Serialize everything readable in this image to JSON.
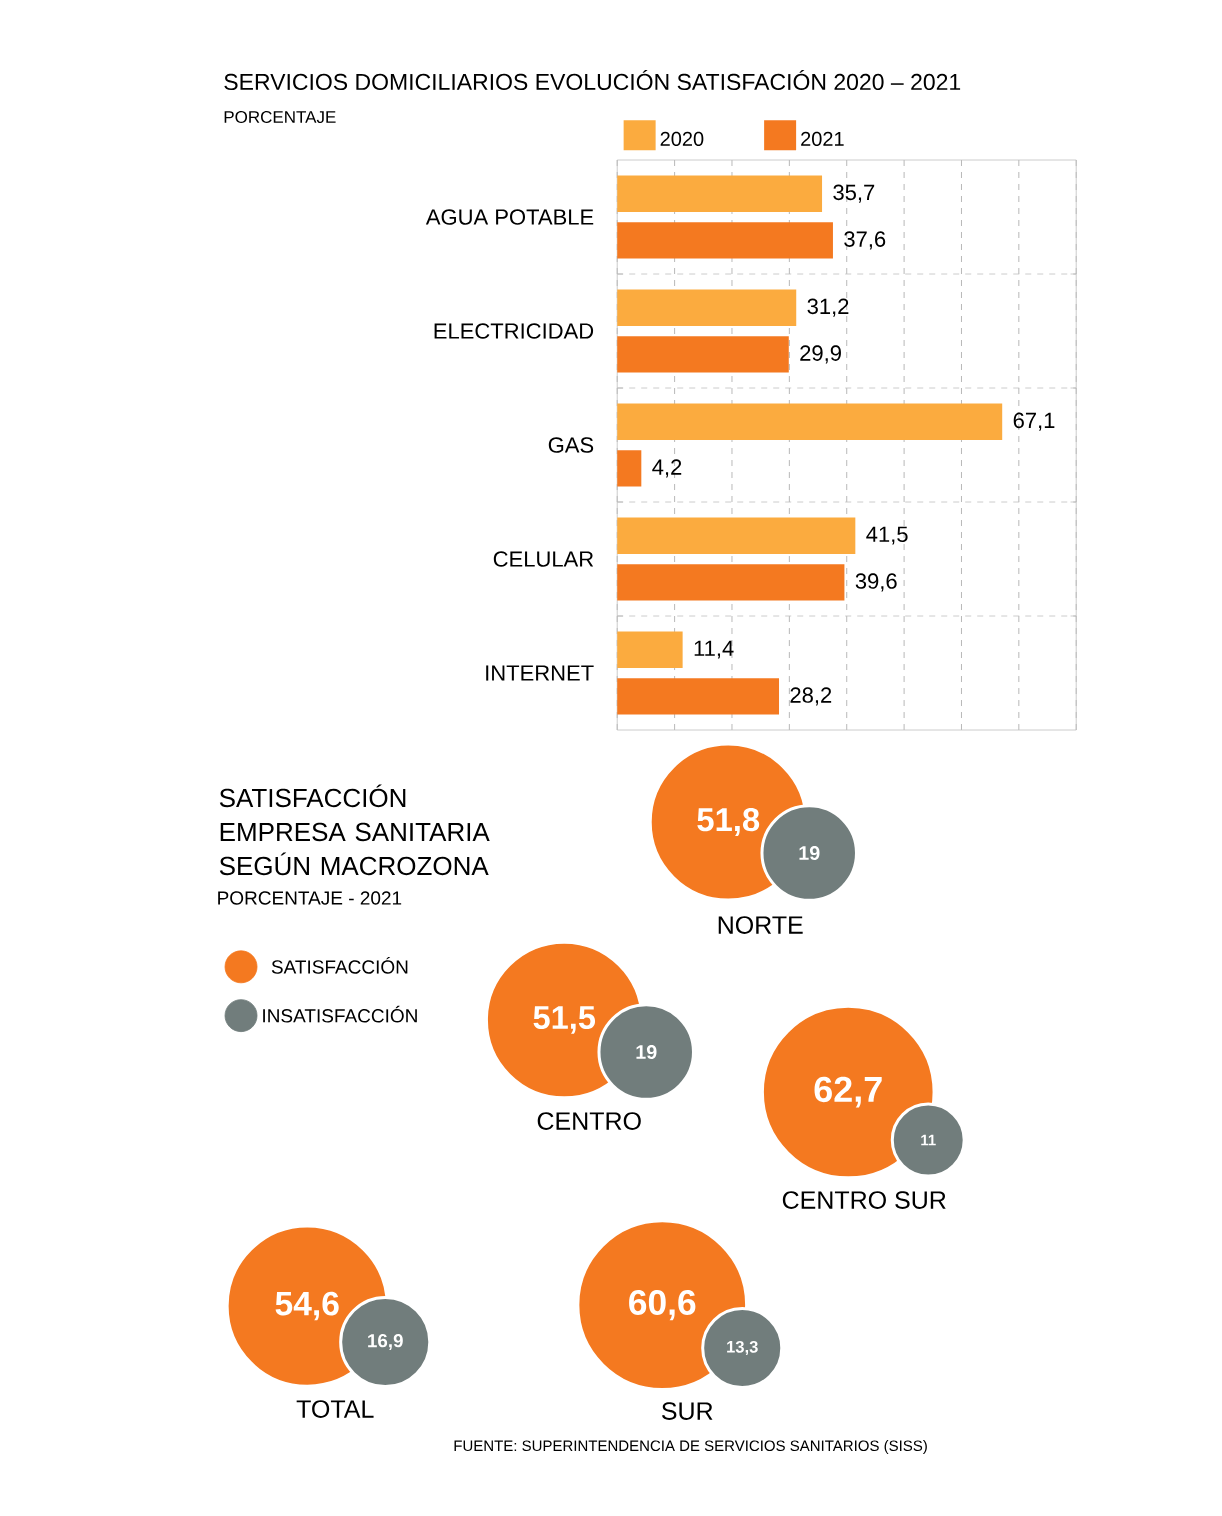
{
  "chart_data": [
    {
      "type": "bar",
      "orientation": "horizontal",
      "title": "SERVICIOS DOMICILIARIOS EVOLUCIÓN SATISFACIÓN 2020 – 2021",
      "subtitle": "PORCENTAJE",
      "categories": [
        "AGUA POTABLE",
        "ELECTRICIDAD",
        "GAS",
        "CELULAR",
        "INTERNET"
      ],
      "series": [
        {
          "name": "2020",
          "color": "#fbab3f",
          "values": [
            35.7,
            31.2,
            67.1,
            41.5,
            11.4
          ],
          "value_labels": [
            "35,7",
            "31,2",
            "67,1",
            "41,5",
            "11,4"
          ]
        },
        {
          "name": "2021",
          "color": "#f47920",
          "values": [
            37.6,
            29.9,
            4.2,
            39.6,
            28.2
          ],
          "value_labels": [
            "37,6",
            "29,9",
            "4,2",
            "39,6",
            "28,2"
          ]
        }
      ],
      "xlim": [
        0,
        80
      ],
      "xticks": [
        {
          "value": 0,
          "label": null
        },
        {
          "value": 10,
          "label": null
        },
        {
          "value": 20,
          "label": null
        },
        {
          "value": 30,
          "label": null
        },
        {
          "value": 40,
          "label": null
        },
        {
          "value": 50,
          "label": null
        },
        {
          "value": 60,
          "label": null
        },
        {
          "value": 70,
          "label": null
        },
        {
          "value": 80,
          "label": null
        }
      ],
      "grid": "x",
      "legend": "top left",
      "tick_labels": "y"
    },
    {
      "type": "other",
      "title": "SATISFACCIÓN EMPRESA SANITARIA SEGÚN MACROZONA",
      "subtitle": "PORCENTAJE - 2021",
      "categories": [
        "NORTE",
        "CENTRO",
        "CENTRO SUR",
        "SUR",
        "TOTAL"
      ],
      "series": [
        {
          "name": "SATISFACCIÓN",
          "color": "#f47920",
          "values": [
            51.8,
            51.5,
            62.7,
            60.6,
            54.6
          ],
          "value_labels": [
            "51,8",
            "51,5",
            "62,7",
            "60,6",
            "54,6"
          ]
        },
        {
          "name": "INSATISFACCIÓN",
          "color": "#717d7c",
          "values": [
            19,
            19,
            11,
            13.3,
            16.9
          ],
          "value_labels": [
            "19",
            "19",
            "11",
            "13,3",
            "16,9"
          ]
        }
      ],
      "legend": "left",
      "annotations": [
        "FUENTE: SUPERINTENDENCIA DE SERVICIOS SANITARIOS (SISS)"
      ]
    }
  ]
}
